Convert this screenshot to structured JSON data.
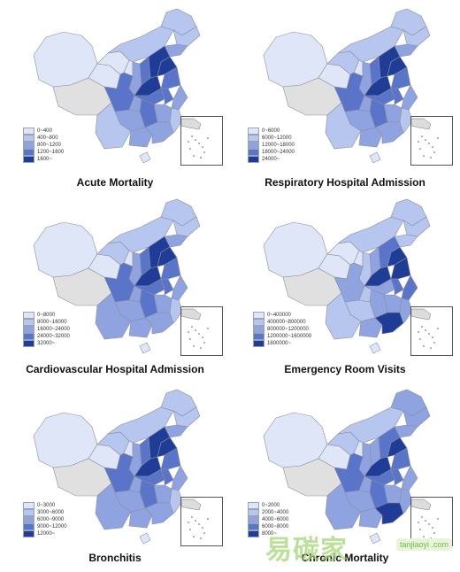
{
  "panels": [
    {
      "title": "Acute Mortality",
      "legend": [
        "0~400",
        "400~800",
        "800~1200",
        "1200~1600",
        "1600~"
      ]
    },
    {
      "title": "Respiratory Hospital Admission",
      "legend": [
        "0~6000",
        "6000~12000",
        "12000~18000",
        "18000~24000",
        "24000~"
      ]
    },
    {
      "title": "Cardiovascular Hospital Admission",
      "legend": [
        "0~8000",
        "8000~16000",
        "16000~24000",
        "24000~32000",
        "32000~"
      ]
    },
    {
      "title": "Emergency Room Visits",
      "legend": [
        "0~400000",
        "400000~800000",
        "800000~1200000",
        "1200000~1600000",
        "1600000~"
      ]
    },
    {
      "title": "Bronchitis",
      "legend": [
        "0~3000",
        "3000~6000",
        "6000~9000",
        "9000~12000",
        "12000~"
      ]
    },
    {
      "title": "Chronic Mortality",
      "legend": [
        "0~2000",
        "2000~4000",
        "4000~6000",
        "6000~8000",
        "8000~"
      ]
    }
  ],
  "legend_colors": [
    "#dfe6f7",
    "#b7c6ee",
    "#8ea3df",
    "#5a74c9",
    "#1f3c96"
  ],
  "no_data_color": "#e0e0e0",
  "watermark": {
    "text": "易碳家",
    "site": "tanjiaoyi\n.com"
  }
}
